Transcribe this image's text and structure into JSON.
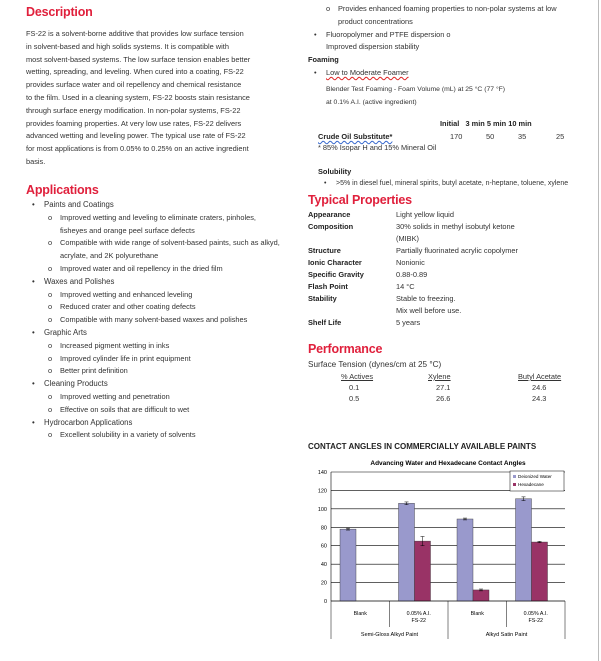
{
  "description": {
    "title": "Description",
    "lines": [
      "FS-22 is a solvent-borne additive that provides low surface tension",
      "in solvent-based and high solids systems.  It is compatible with",
      "most solvent-based systems. The low surface tension enables better",
      "wetting, spreading, and leveling. When cured into a coating, FS-22",
      "provides surface water and oil repellency and chemical resistance",
      "to the film. Used in a cleaning system, FS-22 boosts stain resistance",
      "through surface energy modification. In non-polar systems, FS-22",
      "provides foaming properties. At very low use rates, FS-22 delivers",
      "advanced wetting and leveling power. The typical use rate of FS-22",
      "for most applications is from 0.05% to 0.25% on an active ingredient",
      "basis."
    ]
  },
  "applications": {
    "title": "Applications",
    "items": [
      {
        "label": "Paints and Coatings",
        "subs": [
          "Improved wetting and leveling to eliminate craters, pinholes, fisheyes and orange peel surface defects",
          "Compatible with wide range of solvent-based paints, such as alkyd, acrylate, and 2K polyurethane",
          "Improved water and oil repellency in the dried film"
        ]
      },
      {
        "label": "Waxes and Polishes",
        "subs": [
          "Improved wetting and enhanced leveling",
          "Reduced crater and other coating defects",
          "Compatible with many solvent-based waxes and polishes"
        ]
      },
      {
        "label": "Graphic Arts",
        "subs": [
          "Increased pigment wetting in inks",
          "Improved cylinder life in print equipment",
          "Better print definition"
        ]
      },
      {
        "label": "Cleaning Products",
        "subs": [
          "Improved wetting and penetration",
          "Effective on soils that are difficult to wet"
        ]
      },
      {
        "label": "Hydrocarbon Applications",
        "subs": [
          "Excellent solubility in a variety of solvents"
        ]
      }
    ]
  },
  "right_top": {
    "sub1a": "Provides enhanced foaming properties to non-polar systems at low",
    "sub1b": "product concentrations",
    "bullet2a": "Fluoropolymer and PTFE dispersion o",
    "bullet2b": "Improved dispersion stability"
  },
  "foaming": {
    "title": "Foaming",
    "bullet": "Low to Moderate Foamer",
    "test1": "Blender Test Foaming - Foam Volume (mL) at 25 °C (77 °F)",
    "test2": "at 0.1% A.I. (active ingredient)",
    "headers": [
      "Initial",
      "3 min",
      "5 min",
      "10 min"
    ],
    "row_label": "Crude  Oil Substitute*",
    "row_values": [
      "170",
      "50",
      "35",
      "25"
    ],
    "footnote": "* 85% Isopar H and 15% Mineral Oil"
  },
  "solubility": {
    "title": "Solubility",
    "bullet": ">5% in diesel fuel, mineral spirits, butyl acetate, n-heptane, toluene, xylene"
  },
  "properties": {
    "title": "Typical Properties",
    "rows": [
      {
        "k": "Appearance",
        "v": "Light yellow liquid"
      },
      {
        "k": "Composition",
        "v": "30% solids in methyl isobutyl ketone",
        "v2": "(MIBK)"
      },
      {
        "k": "Structure",
        "v": "Partially fluorinated acrylic copolymer"
      },
      {
        "k": "Ionic Character",
        "v": "Nonionic"
      },
      {
        "k": "Specific Gravity",
        "v": "0.88-0.89"
      },
      {
        "k": "Flash Point",
        "v": "14 °C"
      },
      {
        "k": "Stability",
        "v": "Stable to freezing.",
        "v2": "Mix well before use."
      },
      {
        "k": "Shelf Life",
        "v": "5 years"
      }
    ]
  },
  "performance": {
    "title": "Performance",
    "subtitle": "Surface Tension (dynes/cm at 25 °C)",
    "headers": [
      "% Actives",
      "Xylene",
      "Butyl Acetate"
    ],
    "rows": [
      [
        "0.1",
        "27.1",
        "24.6"
      ],
      [
        "0.5",
        "26.6",
        "24.3"
      ]
    ]
  },
  "chart_heading": "CONTACT ANGLES IN COMMERCIALLY AVAILABLE PAINTS",
  "chart_data": {
    "type": "bar",
    "title": "Advancing Water and Hexadecane Contact Angles",
    "categories": [
      "Blank",
      "0.05% A.I. FS-22",
      "Blank",
      "0.05% A.I. FS-22"
    ],
    "groups": [
      "Semi-Gloss Alkyd Paint",
      "Alkyd Satin Paint"
    ],
    "ylim": [
      0,
      140
    ],
    "yticks": [
      0,
      20,
      40,
      60,
      80,
      100,
      120,
      140
    ],
    "grid": true,
    "legend": "top-right",
    "series": [
      {
        "name": "Deionized Water",
        "color": "#9999cc",
        "values": [
          78,
          106,
          89,
          111
        ],
        "errors": [
          1,
          1.5,
          1,
          2
        ]
      },
      {
        "name": "Hexadecane",
        "color": "#993366",
        "values": [
          0,
          65,
          12,
          64
        ],
        "errors": [
          0,
          5,
          1,
          0.7
        ]
      }
    ]
  }
}
